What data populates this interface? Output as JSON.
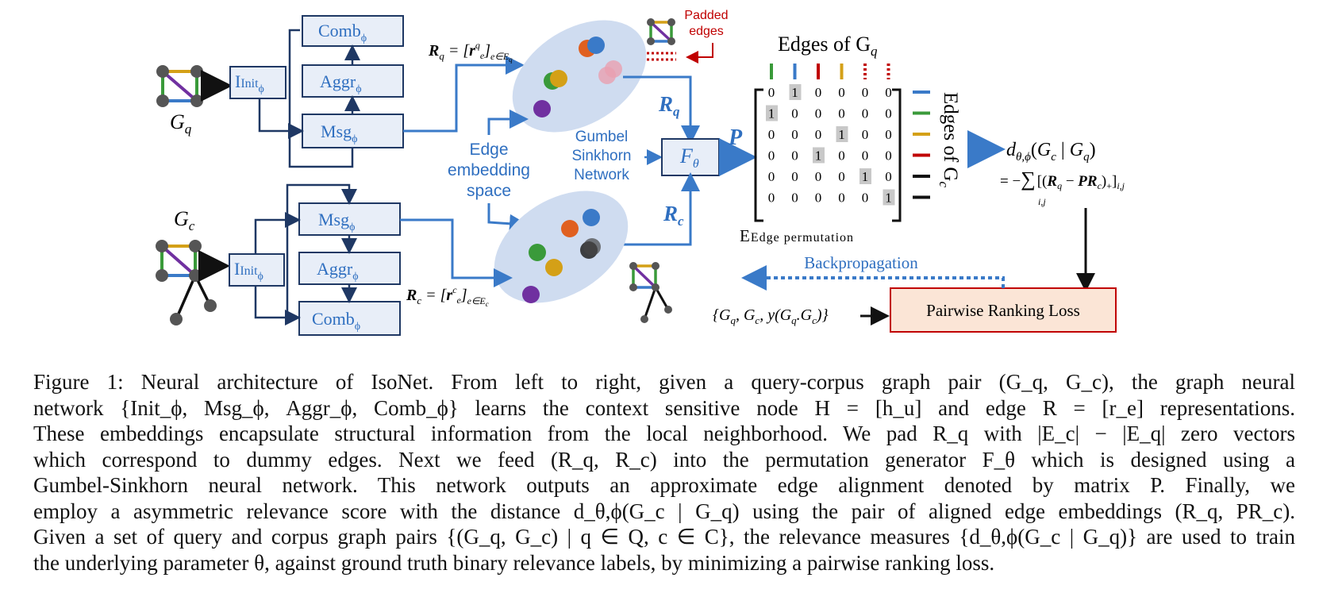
{
  "figure": {
    "query_graph_label": "G",
    "query_graph_sub": "q",
    "corpus_graph_label": "G",
    "corpus_graph_sub": "c",
    "modules": {
      "init": "Init",
      "msg": "Msg",
      "aggr": "Aggr",
      "comb": "Comb",
      "phi": "ϕ"
    },
    "rq_def": "R_q = [r^q_e]_{e∈E_q}",
    "rc_def": "R_c = [r^c_e]_{e∈E_c}",
    "padded_edges": [
      "Padded",
      "edges"
    ],
    "edge_embedding_space": [
      "Edge",
      "embedding",
      "space"
    ],
    "gumbel": [
      "Gumbel",
      "Sinkhorn",
      "Network"
    ],
    "f_theta": "F",
    "f_theta_sub": "θ",
    "rq_label": "R",
    "rq_sub": "q",
    "rc_label": "R",
    "rc_sub": "c",
    "p_label": "P",
    "edges_of_gq": "Edges of G",
    "edges_of_gq_sub": "q",
    "edges_of_gc": "Edges of G",
    "edges_of_gc_sub": "c",
    "edge_permutation": "Edge permutation",
    "matrix": [
      [
        "0",
        "1",
        "0",
        "0",
        "0",
        "0"
      ],
      [
        "1",
        "0",
        "0",
        "0",
        "0",
        "0"
      ],
      [
        "0",
        "0",
        "0",
        "1",
        "0",
        "0"
      ],
      [
        "0",
        "0",
        "1",
        "0",
        "0",
        "0"
      ],
      [
        "0",
        "0",
        "0",
        "0",
        "1",
        "0"
      ],
      [
        "0",
        "0",
        "0",
        "0",
        "0",
        "1"
      ]
    ],
    "distance_lhs": "d",
    "distance_sub": "θ,ϕ",
    "distance_args": "(G",
    "distance_formula": "= −∑ [(R_q − PR_c)_+]_{i,j}",
    "sum_sub": "i,j",
    "backpropagation": "Backpropagation",
    "pairwise_ranking_loss": "Pairwise Ranking Loss",
    "input_tuple": "{G_q, G_c, y(G_q.G_c)}",
    "edge_colors": [
      "#3a9a3a",
      "#3a7ac8",
      "#c00000",
      "#d4a017",
      "#c00000",
      "#c00000"
    ],
    "row_colors": [
      "#3a7ac8",
      "#3a9a3a",
      "#d4a017",
      "#c00000",
      "#111111",
      "#111111"
    ]
  },
  "caption": {
    "lines": [
      "Figure 1: Neural architecture of IsoNet. From left to right, given a query-corpus graph pair (G_q, G_c), the graph neural",
      "network {Init_ϕ, Msg_ϕ, Aggr_ϕ, Comb_ϕ} learns the context sensitive node H = [h_u] and edge R = [r_e] representations.",
      "These embeddings encapsulate structural information from the local neighborhood. We pad R_q with |E_c| − |E_q| zero vectors",
      "which correspond to dummy edges. Next we feed (R_q, R_c) into the permutation generator F_θ which is designed using a",
      "Gumbel-Sinkhorn neural network. This network outputs an approximate edge alignment denoted by matrix P. Finally, we",
      "employ a asymmetric relevance score with the distance d_θ,ϕ(G_c | G_q) using the pair of aligned edge embeddings (R_q, PR_c).",
      "Given a set of query and corpus graph pairs {(G_q, G_c) | q ∈ Q, c ∈ C}, the relevance measures {d_θ,ϕ(G_c | G_q)} are used to train",
      "the underlying parameter θ, against ground truth binary relevance labels, by minimizing a pairwise ranking loss."
    ]
  }
}
